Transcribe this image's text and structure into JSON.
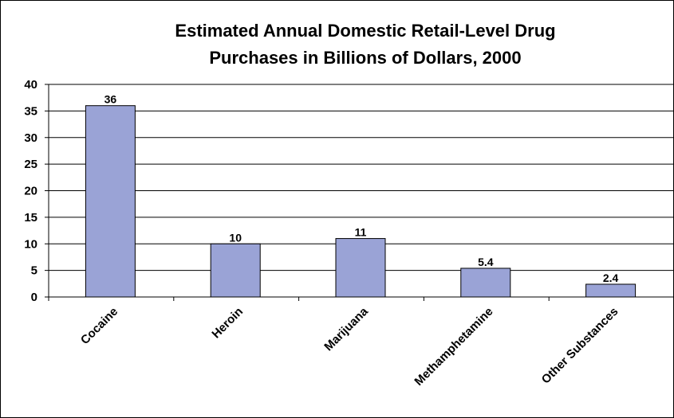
{
  "chart_data": {
    "type": "bar",
    "title": "Estimated Annual Domestic Retail-Level Drug Purchases in Billions of Dollars, 2000",
    "title_lines": [
      "Estimated Annual Domestic Retail-Level Drug",
      "Purchases in Billions of Dollars, 2000"
    ],
    "categories": [
      "Cocaine",
      "Heroin",
      "Marijuana",
      "Methamphetamine",
      "Other Substances"
    ],
    "values": [
      36,
      10,
      11,
      5.4,
      2.4
    ],
    "data_labels": [
      "36",
      "10",
      "11",
      "5.4",
      "2.4"
    ],
    "xlabel": "",
    "ylabel": "",
    "ylim": [
      0,
      40
    ],
    "yticks": [
      0,
      5,
      10,
      15,
      20,
      25,
      30,
      35,
      40
    ],
    "grid": true,
    "legend": "none",
    "colors": {
      "bar_fill": "#9aa3d6",
      "bar_stroke": "#000000",
      "grid": "#000000",
      "frame": "#000000"
    }
  }
}
